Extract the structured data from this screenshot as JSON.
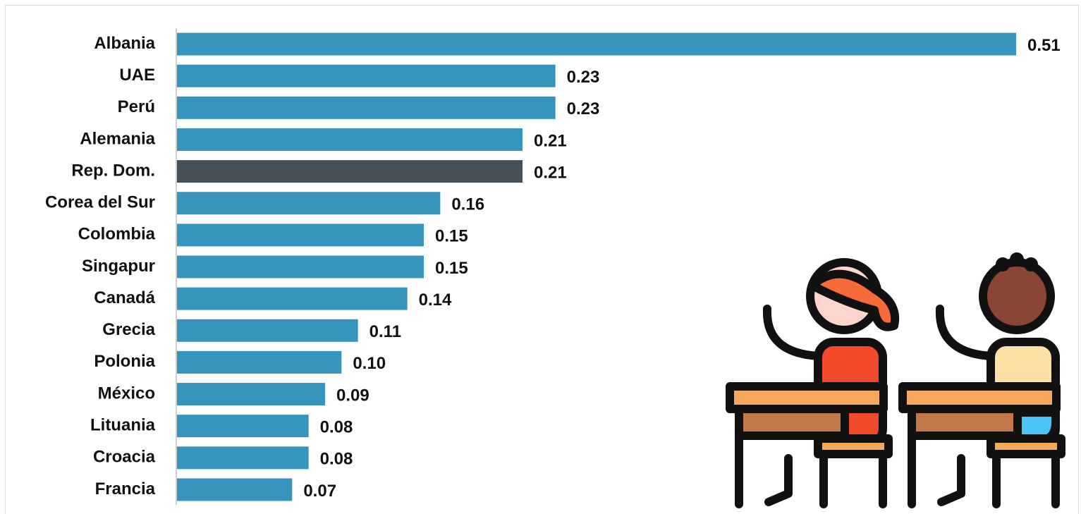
{
  "chart_data": {
    "type": "barh",
    "categories": [
      "Albania",
      "UAE",
      "Perú",
      "Alemania",
      "Rep. Dom.",
      "Corea del Sur",
      "Colombia",
      "Singapur",
      "Canadá",
      "Grecia",
      "Polonia",
      "México",
      "Lituania",
      "Croacia",
      "Francia"
    ],
    "values": [
      0.51,
      0.23,
      0.23,
      0.21,
      0.21,
      0.16,
      0.15,
      0.15,
      0.14,
      0.11,
      0.1,
      0.09,
      0.08,
      0.08,
      0.07
    ],
    "value_labels": [
      "0.51",
      "0.23",
      "0.23",
      "0.21",
      "0.21",
      "0.16",
      "0.15",
      "0.15",
      "0.14",
      "0.11",
      "0.10",
      "0.09",
      "0.08",
      "0.08",
      "0.07"
    ],
    "colors": [
      "#3795bd",
      "#3795bd",
      "#3795bd",
      "#3795bd",
      "#465159",
      "#3795bd",
      "#3795bd",
      "#3795bd",
      "#3795bd",
      "#3795bd",
      "#3795bd",
      "#3795bd",
      "#3795bd",
      "#3795bd",
      "#3795bd"
    ],
    "xlim": [
      0,
      0.51
    ]
  }
}
